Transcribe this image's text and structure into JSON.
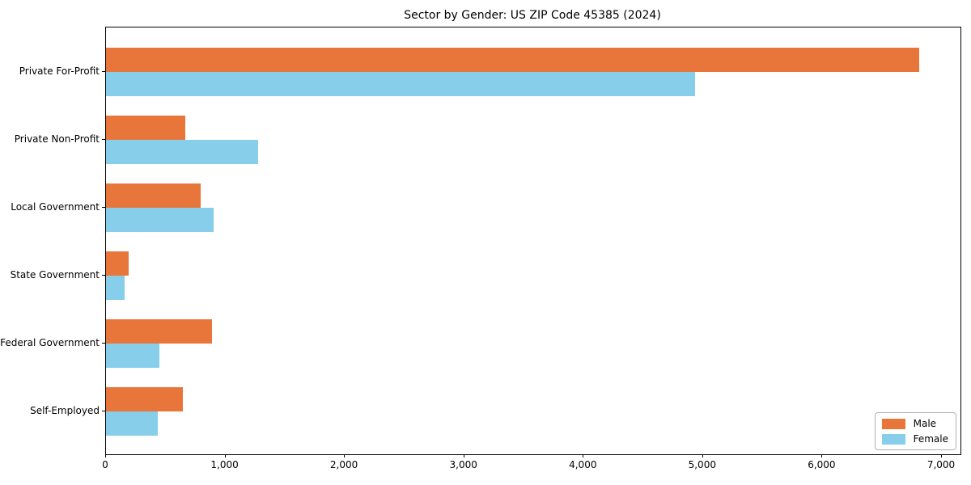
{
  "figure": {
    "title": "Sector by Gender: US ZIP Code 45385 (2024)"
  },
  "chart_data": {
    "type": "bar",
    "orientation": "horizontal",
    "title": "Sector by Gender: US ZIP Code 45385 (2024)",
    "categories": [
      "Private For-Profit",
      "Private Non-Profit",
      "Local Government",
      "State Government",
      "Federal Government",
      "Self-Employed"
    ],
    "series": [
      {
        "name": "Male",
        "color": "#e8763a",
        "values": [
          6810,
          665,
          795,
          190,
          890,
          645
        ]
      },
      {
        "name": "Female",
        "color": "#87ceeb",
        "values": [
          4930,
          1275,
          900,
          155,
          450,
          435
        ]
      }
    ],
    "xlabel": "",
    "ylabel": "",
    "xlim": [
      0,
      7156
    ],
    "xticks": {
      "values": [
        0,
        1000,
        2000,
        3000,
        4000,
        5000,
        6000,
        7000
      ],
      "labels": [
        "0",
        "1,000",
        "2,000",
        "3,000",
        "4,000",
        "5,000",
        "6,000",
        "7,000"
      ]
    },
    "legend": {
      "position": "lower right",
      "entries": [
        "Male",
        "Female"
      ]
    },
    "grid": false
  }
}
